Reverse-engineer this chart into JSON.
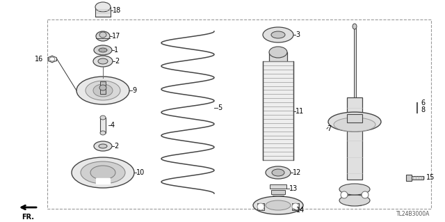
{
  "bg_color": "#ffffff",
  "diagram_code": "TL24B3000A",
  "line_color": "#444444",
  "label_color": "#000000"
}
